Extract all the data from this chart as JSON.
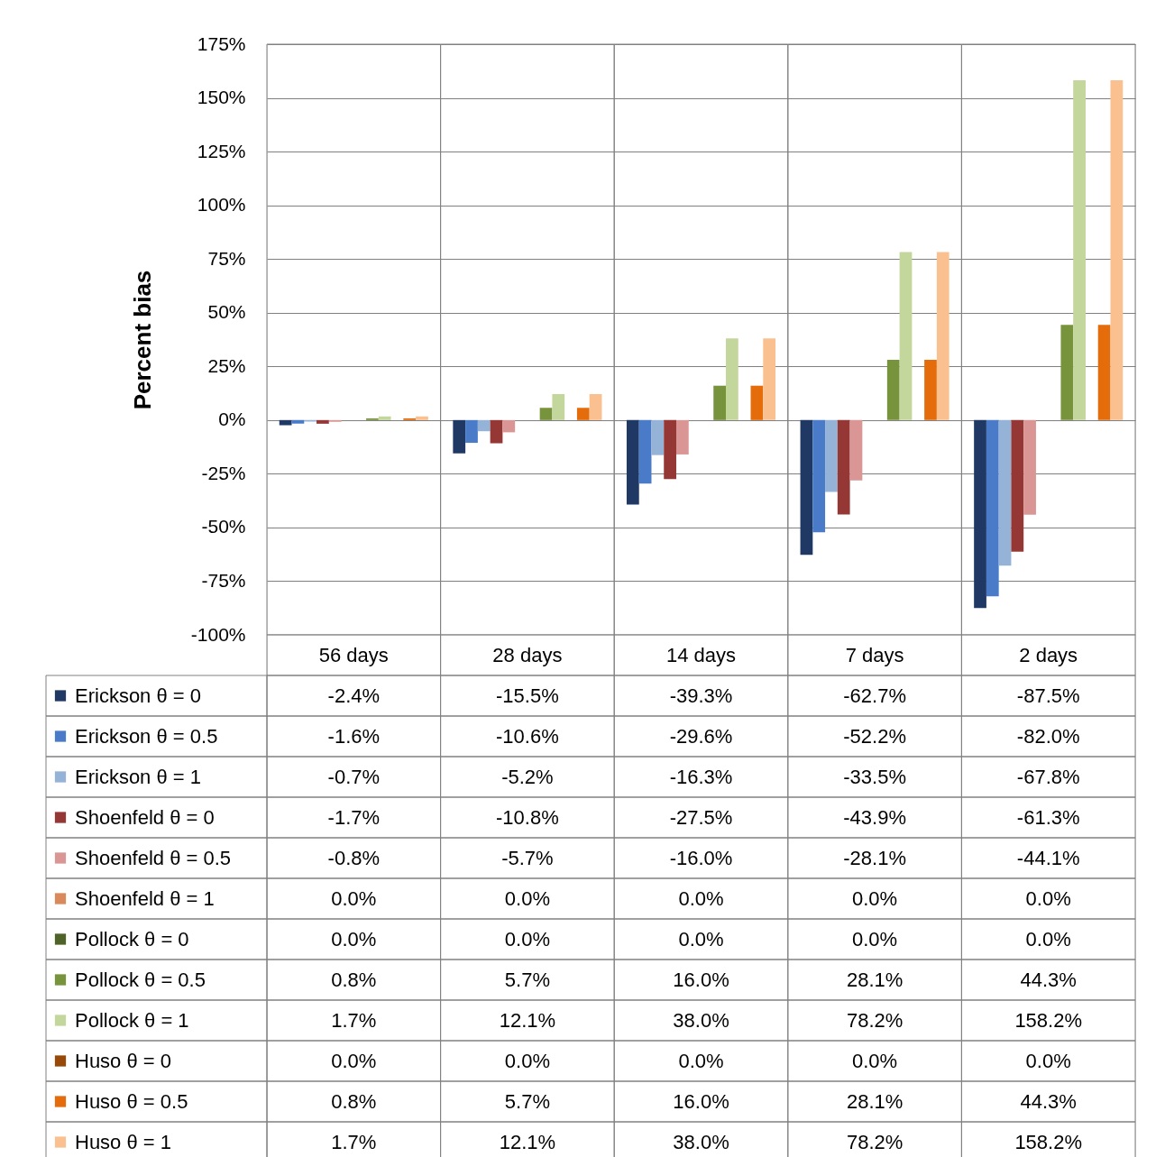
{
  "chart_data": {
    "type": "bar",
    "ylabel": "Percent bias",
    "categories": [
      "56 days",
      "28 days",
      "14 days",
      "7 days",
      "2 days"
    ],
    "ylim": [
      -100,
      175
    ],
    "yticks": [
      {
        "value": -100,
        "label": "-100%"
      },
      {
        "value": -75,
        "label": "-75%"
      },
      {
        "value": -50,
        "label": "-50%"
      },
      {
        "value": -25,
        "label": "-25%"
      },
      {
        "value": 0,
        "label": "0%"
      },
      {
        "value": 25,
        "label": "25%"
      },
      {
        "value": 50,
        "label": "50%"
      },
      {
        "value": 75,
        "label": "75%"
      },
      {
        "value": 100,
        "label": "100%"
      },
      {
        "value": 125,
        "label": "125%"
      },
      {
        "value": 150,
        "label": "150%"
      },
      {
        "value": 175,
        "label": "175%"
      }
    ],
    "grid": true,
    "legend": "bottom",
    "series": [
      {
        "name": "Erickson θ = 0",
        "color": "#1f3864",
        "values": [
          -2.4,
          -15.5,
          -39.3,
          -62.7,
          -87.5
        ],
        "value_labels": [
          "-2.4%",
          "-15.5%",
          "-39.3%",
          "-62.7%",
          "-87.5%"
        ]
      },
      {
        "name": "Erickson θ = 0.5",
        "color": "#4a7bc8",
        "values": [
          -1.6,
          -10.6,
          -29.6,
          -52.2,
          -82.0
        ],
        "value_labels": [
          "-1.6%",
          "-10.6%",
          "-29.6%",
          "-52.2%",
          "-82.0%"
        ]
      },
      {
        "name": "Erickson θ = 1",
        "color": "#95b3d7",
        "values": [
          -0.7,
          -5.2,
          -16.3,
          -33.5,
          -67.8
        ],
        "value_labels": [
          "-0.7%",
          "-5.2%",
          "-16.3%",
          "-33.5%",
          "-67.8%"
        ]
      },
      {
        "name": "Shoenfeld θ = 0",
        "color": "#953735",
        "values": [
          -1.7,
          -10.8,
          -27.5,
          -43.9,
          -61.3
        ],
        "value_labels": [
          "-1.7%",
          "-10.8%",
          "-27.5%",
          "-43.9%",
          "-61.3%"
        ]
      },
      {
        "name": "Shoenfeld θ = 0.5",
        "color": "#d99694",
        "values": [
          -0.8,
          -5.7,
          -16.0,
          -28.1,
          -44.1
        ],
        "value_labels": [
          "-0.8%",
          "-5.7%",
          "-16.0%",
          "-28.1%",
          "-44.1%"
        ]
      },
      {
        "name": "Shoenfeld θ = 1",
        "color": "#d9895b",
        "values": [
          0.0,
          0.0,
          0.0,
          0.0,
          0.0
        ],
        "value_labels": [
          "0.0%",
          "0.0%",
          "0.0%",
          "0.0%",
          "0.0%"
        ]
      },
      {
        "name": "Pollock θ = 0",
        "color": "#4f6228",
        "values": [
          0.0,
          0.0,
          0.0,
          0.0,
          0.0
        ],
        "value_labels": [
          "0.0%",
          "0.0%",
          "0.0%",
          "0.0%",
          "0.0%"
        ]
      },
      {
        "name": "Pollock θ = 0.5",
        "color": "#77933c",
        "values": [
          0.8,
          5.7,
          16.0,
          28.1,
          44.3
        ],
        "value_labels": [
          "0.8%",
          "5.7%",
          "16.0%",
          "28.1%",
          "44.3%"
        ]
      },
      {
        "name": "Pollock θ = 1",
        "color": "#c3d69b",
        "values": [
          1.7,
          12.1,
          38.0,
          78.2,
          158.2
        ],
        "value_labels": [
          "1.7%",
          "12.1%",
          "38.0%",
          "78.2%",
          "158.2%"
        ]
      },
      {
        "name": "Huso θ = 0",
        "color": "#984807",
        "values": [
          0.0,
          0.0,
          0.0,
          0.0,
          0.0
        ],
        "value_labels": [
          "0.0%",
          "0.0%",
          "0.0%",
          "0.0%",
          "0.0%"
        ]
      },
      {
        "name": "Huso θ = 0.5",
        "color": "#e46c0a",
        "values": [
          0.8,
          5.7,
          16.0,
          28.1,
          44.3
        ],
        "value_labels": [
          "0.8%",
          "5.7%",
          "16.0%",
          "28.1%",
          "44.3%"
        ]
      },
      {
        "name": "Huso θ = 1",
        "color": "#fac090",
        "values": [
          1.7,
          12.1,
          38.0,
          78.2,
          158.2
        ],
        "value_labels": [
          "1.7%",
          "12.1%",
          "38.0%",
          "78.2%",
          "158.2%"
        ]
      }
    ]
  }
}
